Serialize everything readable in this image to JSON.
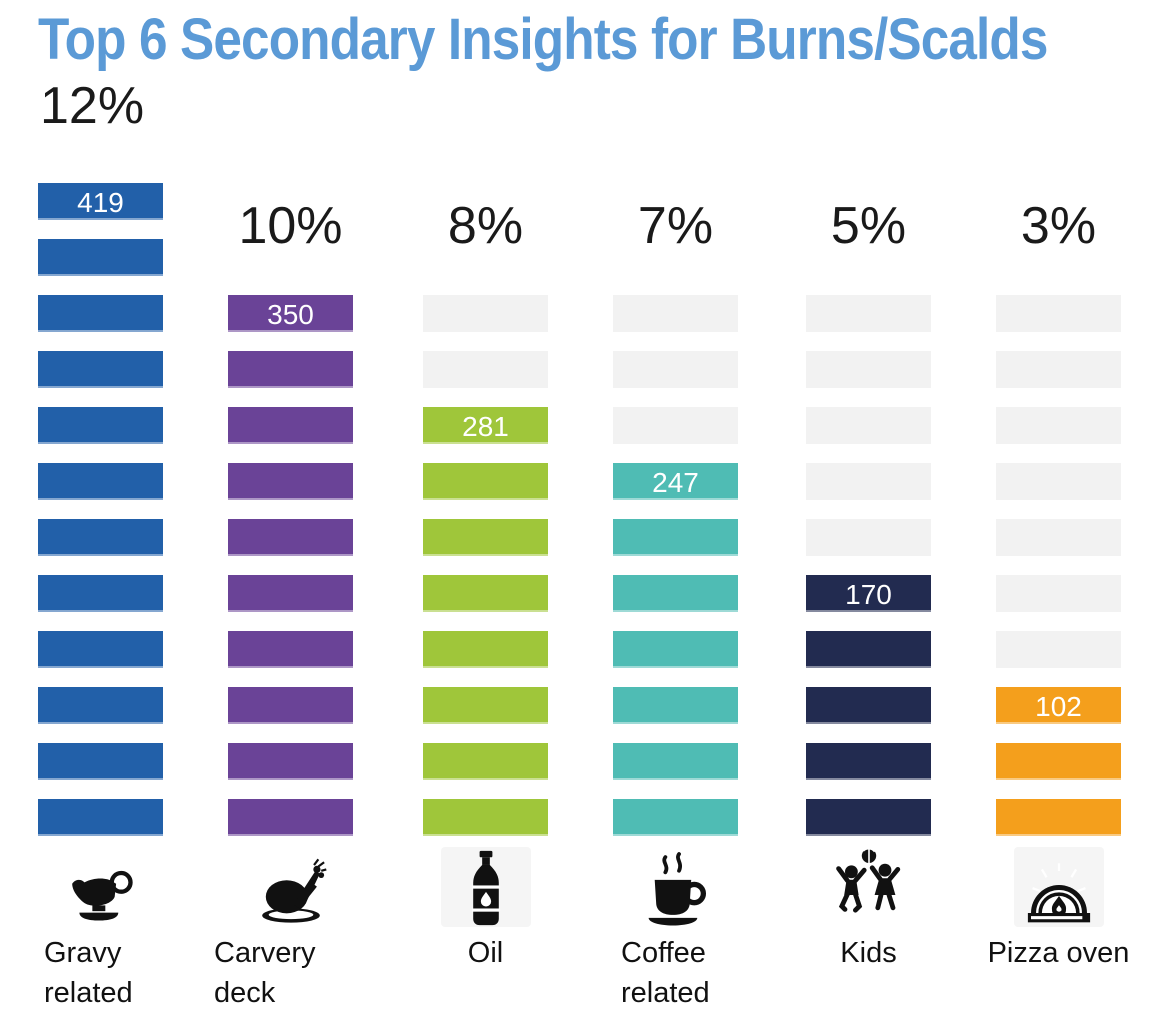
{
  "title": "Top 6 Secondary Insights for Burns/Scalds",
  "colors": {
    "title_accent": "#5b9ad6",
    "track_gray": "#f2f2f2",
    "icon_black": "#111111",
    "value_label_text": "#ffffff",
    "percent_text": "#1a1a1a"
  },
  "chart_data": {
    "type": "bar",
    "subtype": "segmented-pictogram-columns",
    "title": "Top 6 Secondary Insights for Burns/Scalds",
    "categories": [
      "Gravy related",
      "Carvery deck",
      "Oil",
      "Coffee related",
      "Kids",
      "Pizza oven"
    ],
    "total_rows": 12,
    "track_rows_start": 2,
    "track_color": "#f2f2f2",
    "grid": false,
    "legend_position": "none",
    "series": [
      {
        "label": "Gravy related",
        "percent": "12%",
        "count": "419",
        "segments": 12,
        "color": "#2260a9",
        "icon": "gravy-boat-icon",
        "icon_bg": false
      },
      {
        "label": "Carvery deck",
        "percent": "10%",
        "count": "350",
        "segments": 10,
        "color": "#6a4397",
        "icon": "roast-turkey-icon",
        "icon_bg": false
      },
      {
        "label": "Oil",
        "percent": "8%",
        "count": "281",
        "segments": 8,
        "color": "#9fc63a",
        "icon": "oil-bottle-icon",
        "icon_bg": true
      },
      {
        "label": "Coffee related",
        "percent": "7%",
        "count": "247",
        "segments": 7,
        "color": "#4fbcb4",
        "icon": "coffee-cup-icon",
        "icon_bg": false
      },
      {
        "label": "Kids",
        "percent": "5%",
        "count": "170",
        "segments": 5,
        "color": "#222b50",
        "icon": "kids-playing-icon",
        "icon_bg": false
      },
      {
        "label": "Pizza oven",
        "percent": "3%",
        "count": "102",
        "segments": 3,
        "color": "#f49f1c",
        "icon": "pizza-oven-icon",
        "icon_bg": true
      }
    ]
  }
}
